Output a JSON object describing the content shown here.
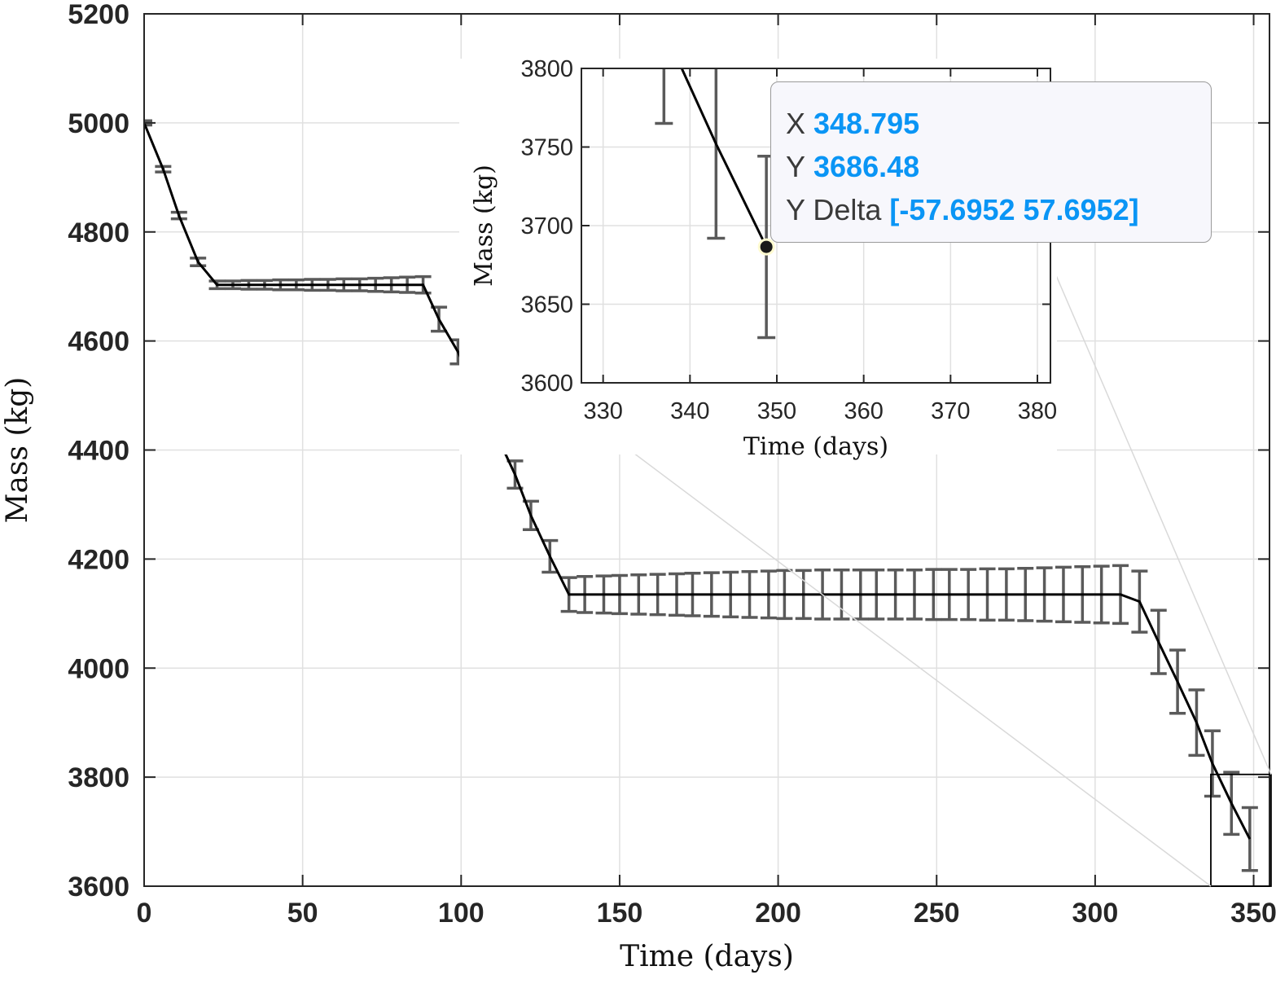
{
  "chart_data": [
    {
      "type": "line",
      "xlabel": "Time (days)",
      "ylabel": "Mass (kg)",
      "xlim": [
        0,
        355
      ],
      "ylim": [
        3600,
        5200
      ],
      "xticks": [
        0,
        50,
        100,
        150,
        200,
        250,
        300,
        350
      ],
      "yticks": [
        3600,
        3800,
        4000,
        4200,
        4400,
        4600,
        4800,
        5000,
        5200
      ],
      "grid": true,
      "series": [
        {
          "line": {
            "x": [
              0,
              6,
              11,
              17,
              23,
              88,
              93,
              99,
              105,
              111,
              117,
              122,
              128,
              134,
              308,
              314,
              320,
              326,
              332,
              337,
              343,
              348.795
            ],
            "y": [
              5000,
              4915,
              4830,
              4745,
              4703,
              4703,
              4640,
              4580,
              4505,
              4430,
              4355,
              4280,
              4205,
              4135,
              4135,
              4122,
              4048,
              3975,
              3900,
              3825,
              3752,
              3686.48
            ]
          },
          "errorbars": {
            "x": [
              0,
              6,
              11,
              17,
              23,
              28,
              33,
              38,
              43,
              48,
              53,
              58,
              63,
              68,
              73,
              78,
              83,
              88,
              93,
              99,
              105,
              111,
              117,
              122,
              128,
              134,
              139,
              145,
              150,
              156,
              162,
              168,
              173,
              179,
              185,
              191,
              197,
              202,
              208,
              214,
              220,
              226,
              231,
              237,
              243,
              249,
              254,
              260,
              266,
              272,
              278,
              284,
              290,
              296,
              302,
              308,
              314,
              320,
              326,
              332,
              337,
              343,
              348.795
            ],
            "y": [
              5000,
              4915,
              4830,
              4745,
              4703,
              4703,
              4703,
              4703,
              4703,
              4703,
              4703,
              4703,
              4703,
              4703,
              4703,
              4703,
              4703,
              4703,
              4640,
              4580,
              4505,
              4430,
              4355,
              4280,
              4205,
              4135,
              4135,
              4135,
              4135,
              4135,
              4135,
              4135,
              4135,
              4135,
              4135,
              4135,
              4135,
              4135,
              4135,
              4135,
              4135,
              4135,
              4135,
              4135,
              4135,
              4135,
              4135,
              4135,
              4135,
              4135,
              4135,
              4135,
              4135,
              4135,
              4135,
              4135,
              4122,
              4048,
              3975,
              3900,
              3825,
              3752,
              3686.48
            ],
            "delta": [
              4,
              5,
              6,
              7,
              7,
              7,
              8,
              8,
              9,
              9,
              10,
              10,
              11,
              11,
              12,
              13,
              14,
              15,
              22,
              22,
              24,
              24,
              25,
              26,
              29,
              31,
              33,
              34,
              35,
              36,
              37,
              38,
              39,
              40,
              41,
              42,
              43,
              44,
              44,
              45,
              45,
              45,
              45,
              45,
              45,
              46,
              46,
              46,
              47,
              47,
              48,
              49,
              50,
              51,
              52,
              53,
              56,
              58,
              58,
              60,
              60,
              57,
              57.6952
            ]
          }
        }
      ]
    },
    {
      "type": "line",
      "xlabel": "Time (days)",
      "ylabel": "Mass (kg)",
      "xlim": [
        327.5,
        381.5
      ],
      "ylim": [
        3600,
        3800
      ],
      "xticks": [
        330,
        340,
        350,
        360,
        370,
        380
      ],
      "yticks": [
        3600,
        3650,
        3700,
        3750,
        3800
      ],
      "grid": true,
      "series": [
        {
          "line": {
            "x": [
              337,
              343,
              348.795
            ],
            "y": [
              3825,
              3752,
              3686.48
            ]
          },
          "errorbars": {
            "x": [
              337,
              343,
              348.795
            ],
            "y": [
              3825,
              3752,
              3686.48
            ],
            "delta": [
              60,
              60,
              57.6952
            ]
          },
          "marker": {
            "x": 348.795,
            "y": 3686.48
          }
        }
      ]
    }
  ],
  "datatip": {
    "x_label": "X",
    "x_value": "348.795",
    "y_label": "Y",
    "y_value": "3686.48",
    "delta_label": "Y Delta",
    "delta_value": "[-57.6952 57.6952]"
  },
  "colors": {
    "line": "#000000",
    "errorbar": "#5a5a5a",
    "grid": "#e0e0e0",
    "axes": "#262626",
    "datatip_value": "#0a95f5",
    "marker_fill": "#1a1a1a",
    "marker_edge": "#fffbd0"
  }
}
